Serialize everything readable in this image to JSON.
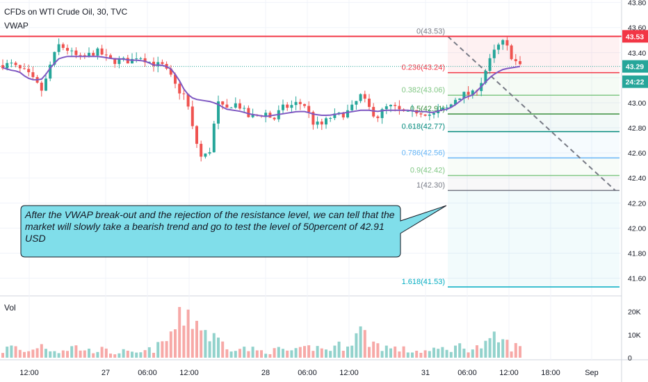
{
  "header": {
    "symbol_title": "CFDs on WTI Crude Oil, 30, TVC",
    "indicator": "VWAP"
  },
  "volume_panel": {
    "label": "Vol"
  },
  "price_axis": {
    "ticks": [
      "43.80",
      "43.60",
      "43.40",
      "43.20",
      "43.00",
      "42.80",
      "42.60",
      "42.40",
      "42.20",
      "42.00",
      "41.80",
      "41.60"
    ],
    "badges": {
      "resistance": {
        "text": "43.53",
        "color": "#f23645"
      },
      "last_price": {
        "text": "43.29",
        "color": "#26a69a"
      },
      "countdown": {
        "text": "24:22",
        "color": "#26a69a"
      }
    }
  },
  "volume_axis": {
    "ticks": [
      "20K",
      "10K",
      "0"
    ]
  },
  "time_axis": {
    "ticks": [
      "12:00",
      "27",
      "06:00",
      "12:00",
      "28",
      "06:00",
      "12:00",
      "31",
      "06:00",
      "12:00",
      "18:00",
      "Sep"
    ]
  },
  "fibonacci": {
    "levels": [
      {
        "label": "0(43.53)",
        "price": 43.53,
        "color": "#787b86",
        "line_color": "#f23645"
      },
      {
        "label": "0.236(43.24)",
        "price": 43.24,
        "color": "#f23645",
        "line_color": "#f23645"
      },
      {
        "label": "0.382(43.06)",
        "price": 43.06,
        "color": "#81c784",
        "line_color": "#81c784"
      },
      {
        "label": "0.5(42.91)",
        "price": 42.91,
        "color": "#388e3c",
        "line_color": "#388e3c"
      },
      {
        "label": "0.618(42.77)",
        "price": 42.77,
        "color": "#00897b",
        "line_color": "#00897b"
      },
      {
        "label": "0.786(42.56)",
        "price": 42.56,
        "color": "#64b5f6",
        "line_color": "#64b5f6"
      },
      {
        "label": "0.9(42.42)",
        "price": 42.42,
        "color": "#81c784",
        "line_color": "#81c784"
      },
      {
        "label": "1(42.30)",
        "price": 42.3,
        "color": "#787b86",
        "line_color": "#787b86"
      },
      {
        "label": "1.618(41.53)",
        "price": 41.53,
        "color": "#00acc1",
        "line_color": "#00acc1"
      }
    ]
  },
  "annotation": {
    "text_lines": [
      "After the VWAP break-out and the rejection of the resistance level, we can tell that the",
      "market will slowly take a bearish trend and go to test the level of 50percent of 42.91",
      "USD"
    ],
    "fill": "#80deea"
  },
  "colors": {
    "up": "#26a69a",
    "down": "#ef5350",
    "vwap": "#7e57c2",
    "resistance": "#f23645"
  },
  "chart_data": {
    "type": "candlestick",
    "interval": "30",
    "price_unit": "USD",
    "ylim": [
      41.47,
      43.82
    ],
    "resistance_level": 43.53,
    "last_price": 43.29,
    "close_path": [
      43.3,
      43.31,
      43.27,
      43.24,
      43.17,
      43.09,
      43.31,
      43.46,
      43.43,
      43.38,
      43.35,
      43.39,
      43.41,
      43.36,
      43.33,
      43.34,
      43.33,
      43.38,
      43.34,
      43.31,
      43.3,
      43.22,
      43.1,
      43.05,
      42.75,
      42.55,
      42.62,
      43.0,
      42.94,
      43.0,
      42.96,
      42.88,
      42.9,
      42.92,
      42.86,
      42.96,
      42.97,
      43.0,
      42.98,
      42.84,
      42.82,
      42.88,
      42.9,
      42.91,
      42.97,
      43.06,
      42.96,
      42.88,
      42.96,
      42.97,
      42.93,
      42.91,
      42.93,
      42.92,
      42.9,
      42.94,
      42.96,
      43.04,
      43.07,
      43.07,
      43.15,
      43.31,
      43.44,
      43.49,
      43.36,
      43.29
    ],
    "vwap_path": [
      43.28,
      43.26,
      43.25,
      43.2,
      43.18,
      43.19,
      43.28,
      43.35,
      43.37,
      43.37,
      43.37,
      43.37,
      43.37,
      43.36,
      43.35,
      43.35,
      43.34,
      43.34,
      43.33,
      43.3,
      43.3,
      43.28,
      43.2,
      43.08,
      43.03,
      43.02,
      43.01,
      42.99,
      42.95,
      42.94,
      42.93,
      42.91,
      42.9,
      42.89,
      42.9,
      42.91,
      42.92,
      42.93,
      42.93,
      42.91,
      42.9,
      42.9,
      42.91,
      42.92,
      42.93,
      42.94,
      42.94,
      42.93,
      42.94,
      42.94,
      42.94,
      42.94,
      42.93,
      42.93,
      42.92,
      42.94,
      42.95,
      42.99,
      43.04,
      43.06,
      43.12,
      43.19,
      43.24,
      43.27,
      43.28,
      43.29
    ],
    "volume_path": [
      3,
      5,
      4,
      2,
      5,
      6,
      4,
      3,
      4,
      5,
      4,
      3,
      4,
      3,
      2,
      3,
      2,
      2,
      3,
      4,
      6,
      10,
      16,
      22,
      18,
      14,
      10,
      8,
      6,
      5,
      4,
      4,
      3,
      3,
      3,
      4,
      3,
      3,
      4,
      5,
      4,
      4,
      5,
      6,
      9,
      12,
      8,
      6,
      5,
      4,
      4,
      3,
      3,
      3,
      3,
      4,
      4,
      5,
      5,
      4,
      5,
      6,
      9,
      7,
      5,
      5
    ],
    "volume_unit": "K"
  }
}
